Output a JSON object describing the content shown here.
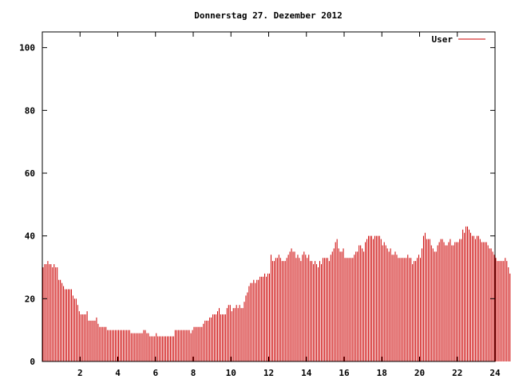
{
  "chart_data": {
    "type": "bar",
    "title": "Donnerstag 27. Dezember 2012",
    "xlabel": "",
    "ylabel": "",
    "xlim": [
      0,
      24
    ],
    "ylim": [
      0,
      105
    ],
    "xticks": [
      2,
      4,
      6,
      8,
      10,
      12,
      14,
      16,
      18,
      20,
      22,
      24
    ],
    "yticks": [
      0,
      20,
      40,
      60,
      80,
      100
    ],
    "grid": false,
    "legend_position": "top-right",
    "series": [
      {
        "name": "User",
        "color": "#cc0000",
        "step_minutes": 5,
        "values": [
          30,
          31,
          31,
          32,
          31,
          31,
          30,
          31,
          30,
          30,
          26,
          26,
          25,
          24,
          23,
          23,
          23,
          23,
          23,
          21,
          20,
          20,
          18,
          16,
          15,
          15,
          15,
          15,
          16,
          13,
          13,
          13,
          13,
          13,
          14,
          12,
          11,
          11,
          11,
          11,
          11,
          10,
          10,
          10,
          10,
          10,
          10,
          10,
          10,
          10,
          10,
          10,
          10,
          10,
          10,
          10,
          9,
          9,
          9,
          9,
          9,
          9,
          9,
          9,
          10,
          10,
          9,
          9,
          8,
          8,
          8,
          8,
          9,
          8,
          8,
          8,
          8,
          8,
          8,
          8,
          8,
          8,
          8,
          8,
          10,
          10,
          10,
          10,
          10,
          10,
          10,
          10,
          10,
          10,
          9,
          10,
          11,
          11,
          11,
          11,
          11,
          11,
          12,
          13,
          13,
          13,
          14,
          14,
          15,
          15,
          15,
          16,
          17,
          15,
          15,
          15,
          15,
          17,
          18,
          18,
          16,
          17,
          17,
          18,
          17,
          18,
          17,
          17,
          19,
          21,
          22,
          24,
          25,
          25,
          26,
          25,
          26,
          26,
          27,
          27,
          27,
          28,
          27,
          28,
          28,
          34,
          32,
          32,
          33,
          33,
          34,
          33,
          32,
          32,
          32,
          33,
          34,
          35,
          36,
          35,
          35,
          33,
          34,
          33,
          32,
          34,
          35,
          34,
          33,
          34,
          32,
          32,
          31,
          32,
          31,
          30,
          32,
          31,
          33,
          33,
          33,
          33,
          32,
          34,
          35,
          36,
          38,
          39,
          36,
          35,
          35,
          36,
          33,
          33,
          33,
          33,
          33,
          33,
          34,
          35,
          35,
          37,
          37,
          36,
          35,
          38,
          39,
          40,
          40,
          40,
          39,
          40,
          40,
          40,
          40,
          39,
          37,
          38,
          37,
          36,
          35,
          36,
          34,
          34,
          35,
          34,
          33,
          33,
          33,
          33,
          33,
          33,
          34,
          33,
          33,
          31,
          32,
          32,
          33,
          34,
          33,
          36,
          40,
          41,
          39,
          39,
          39,
          37,
          36,
          35,
          35,
          37,
          38,
          39,
          39,
          38,
          37,
          37,
          38,
          39,
          37,
          37,
          38,
          38,
          38,
          39,
          39,
          42,
          41,
          43,
          43,
          42,
          41,
          40,
          40,
          39,
          40,
          40,
          39,
          38,
          38,
          38,
          38,
          37,
          36,
          36,
          35,
          34,
          33,
          32,
          32,
          32,
          32,
          32,
          33,
          32,
          30,
          28,
          28,
          27
        ]
      }
    ]
  }
}
